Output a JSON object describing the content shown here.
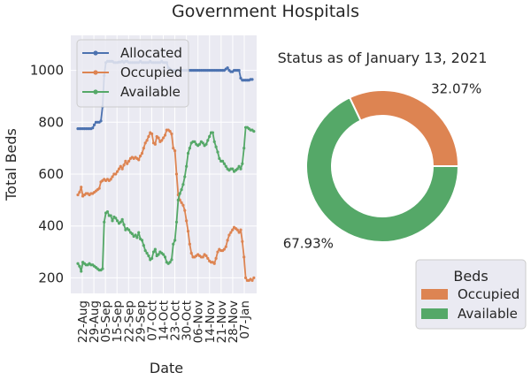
{
  "chart_data": [
    {
      "type": "line",
      "title": "Government Hospitals",
      "xlabel": "Date",
      "ylabel": "Total Beds",
      "ylim": [
        140,
        1135
      ],
      "yticks": [
        200,
        400,
        600,
        800,
        1000
      ],
      "xticks": [
        "22-Aug",
        "29-Aug",
        "05-Sep",
        "15-Sep",
        "22-Sep",
        "29-Sep",
        "07-Oct",
        "14-Oct",
        "23-Oct",
        "30-Oct",
        "06-Nov",
        "14-Nov",
        "21-Nov",
        "28-Nov",
        "07-Jan"
      ],
      "legend_position": "upper-left",
      "grid": true,
      "series": [
        {
          "name": "Allocated",
          "color": "#4c72b0",
          "values": [
            775,
            775,
            775,
            775,
            775,
            775,
            775,
            775,
            775,
            778,
            790,
            800,
            800,
            800,
            805,
            860,
            980,
            1030,
            1035,
            1035,
            1035,
            1035,
            1030,
            1030,
            1030,
            1032,
            1032,
            1035,
            1030,
            1035,
            1035,
            1030,
            1030,
            1030,
            1030,
            1030,
            1030,
            1030,
            1035,
            1030,
            1030,
            1030,
            1030,
            1030,
            1035,
            1030,
            1030,
            1030,
            1030,
            1030,
            1030,
            1035,
            1030,
            1030,
            1030,
            1010,
            1005,
            1000,
            1000,
            1000,
            1000,
            1000,
            1000,
            1000,
            1000,
            1000,
            1000,
            1000,
            1000,
            1000,
            1000,
            1000,
            1000,
            1000,
            1000,
            1000,
            1000,
            1000,
            1000,
            1000,
            1000,
            1000,
            1000,
            1000,
            1000,
            1000,
            1000,
            1000,
            1000,
            1000,
            1005,
            1010,
            1000,
            995,
            995,
            1000,
            1000,
            1000,
            1000,
            970,
            962,
            962,
            962,
            962,
            962,
            965,
            965
          ]
        },
        {
          "name": "Occupied",
          "color": "#dd8452",
          "values": [
            520,
            530,
            550,
            515,
            520,
            525,
            525,
            520,
            525,
            525,
            530,
            535,
            540,
            545,
            570,
            575,
            580,
            575,
            580,
            575,
            580,
            590,
            600,
            600,
            610,
            620,
            630,
            620,
            635,
            650,
            640,
            650,
            660,
            665,
            660,
            665,
            660,
            655,
            670,
            680,
            700,
            720,
            730,
            745,
            760,
            755,
            720,
            715,
            745,
            740,
            725,
            730,
            740,
            750,
            770,
            770,
            765,
            755,
            700,
            690,
            600,
            520,
            500,
            490,
            480,
            460,
            420,
            380,
            330,
            295,
            280,
            280,
            285,
            290,
            285,
            280,
            280,
            290,
            285,
            275,
            265,
            260,
            260,
            255,
            275,
            300,
            310,
            305,
            305,
            310,
            320,
            345,
            365,
            375,
            385,
            395,
            390,
            385,
            375,
            385,
            340,
            280,
            200,
            190,
            190,
            195,
            190,
            200
          ]
        },
        {
          "name": "Available",
          "color": "#55a868",
          "values": [
            255,
            245,
            225,
            260,
            255,
            250,
            250,
            255,
            250,
            250,
            245,
            240,
            235,
            230,
            230,
            235,
            415,
            450,
            455,
            440,
            440,
            420,
            435,
            430,
            420,
            410,
            415,
            425,
            405,
            385,
            390,
            385,
            375,
            370,
            360,
            365,
            355,
            375,
            350,
            345,
            325,
            305,
            295,
            285,
            270,
            275,
            300,
            310,
            285,
            290,
            300,
            295,
            290,
            280,
            260,
            255,
            260,
            270,
            330,
            345,
            415,
            500,
            525,
            540,
            560,
            590,
            630,
            680,
            700,
            720,
            725,
            725,
            715,
            710,
            715,
            725,
            720,
            710,
            715,
            730,
            745,
            760,
            760,
            725,
            705,
            685,
            660,
            650,
            650,
            640,
            630,
            620,
            615,
            620,
            620,
            610,
            615,
            620,
            630,
            620,
            640,
            700,
            780,
            780,
            775,
            770,
            770,
            765
          ]
        }
      ]
    },
    {
      "type": "pie",
      "title": "Status as of January 13, 2021",
      "donut": true,
      "legend_title": "Beds",
      "legend_position": "bottom-right",
      "slices": [
        {
          "label": "Occupied",
          "value": 32.07,
          "display": "32.07%",
          "color": "#dd8452"
        },
        {
          "label": "Available",
          "value": 67.93,
          "display": "67.93%",
          "color": "#55a868"
        }
      ]
    }
  ]
}
